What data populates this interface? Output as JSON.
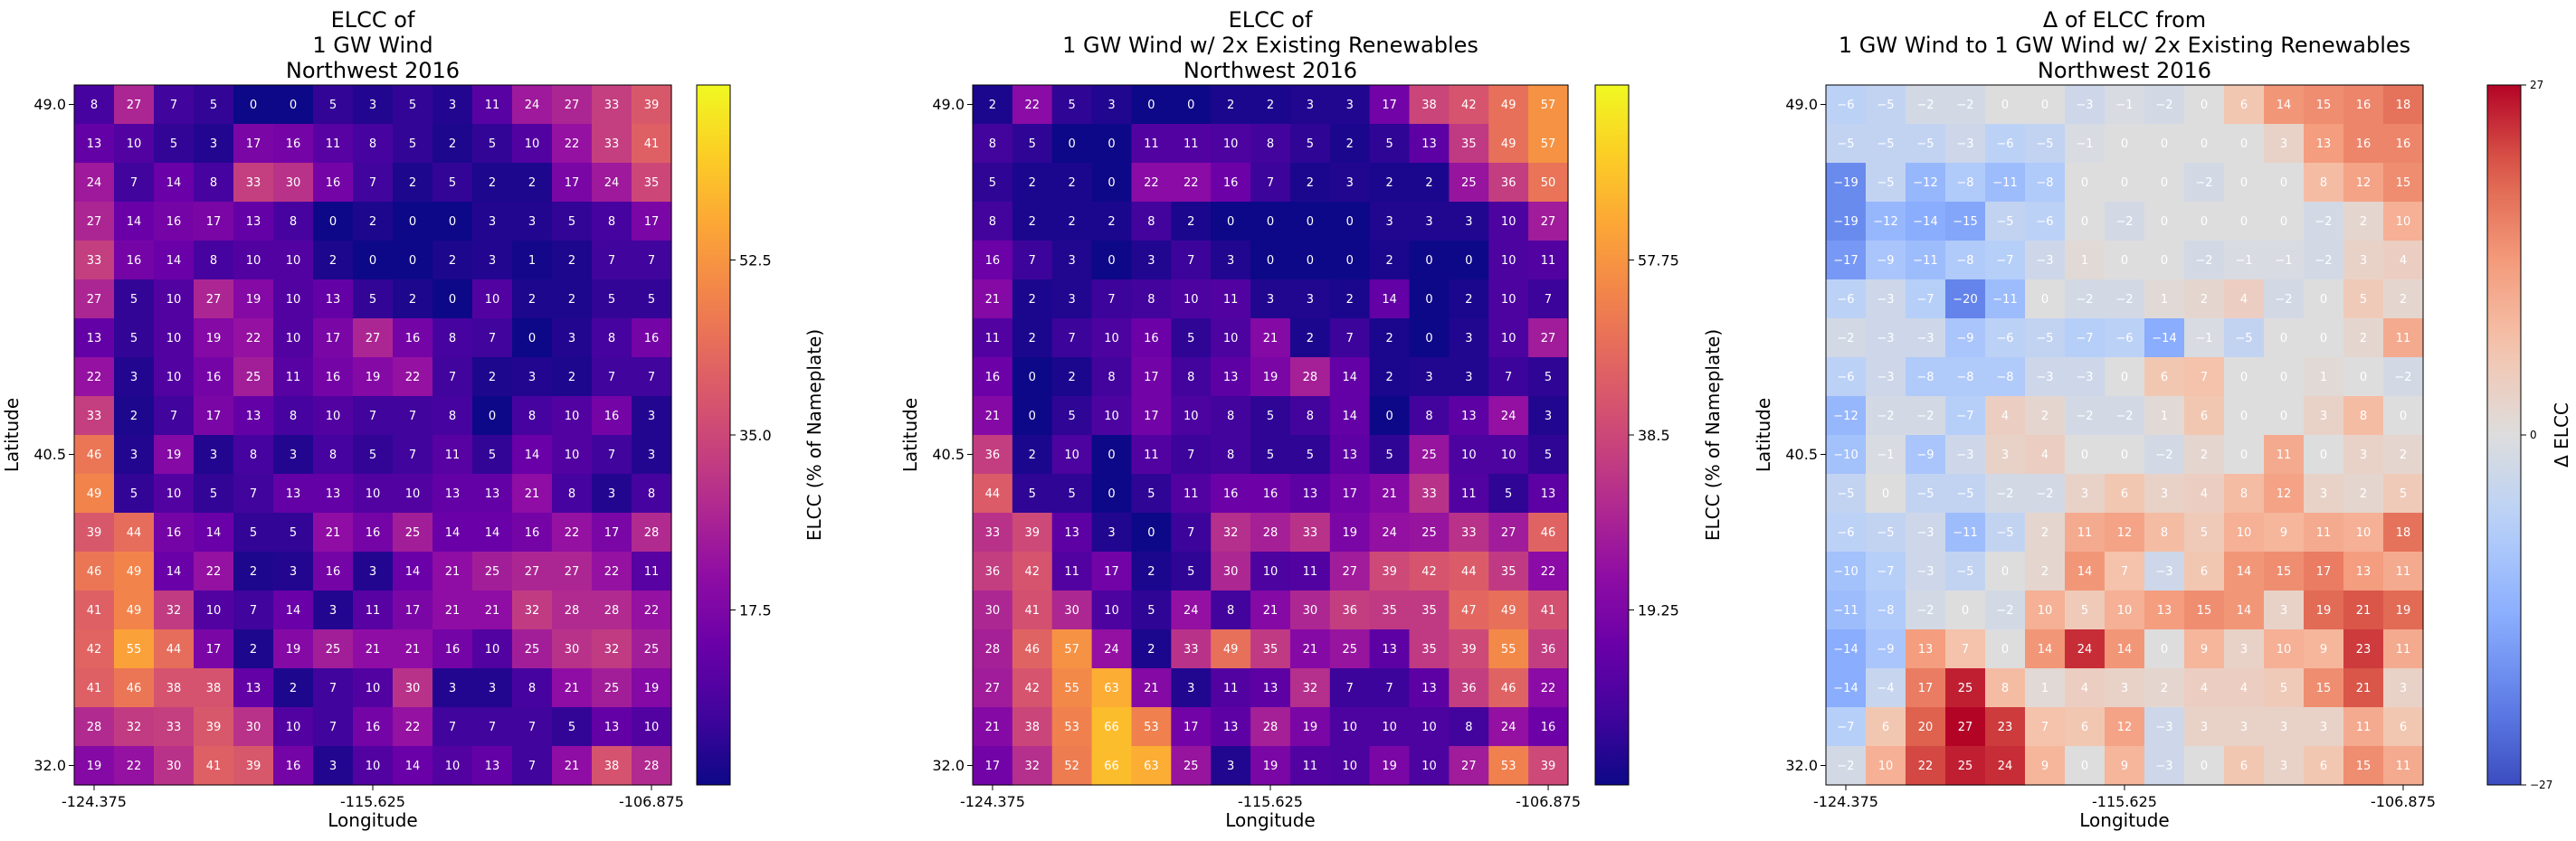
{
  "chart_data": [
    {
      "type": "heatmap",
      "title": "ELCC of\n1 GW Wind\nNorthwest 2016",
      "xlabel": "Longitude",
      "ylabel": "Latitude",
      "xticks": [
        "-124.375",
        "-115.625",
        "-106.875"
      ],
      "yticks": [
        "49.0",
        "40.5",
        "32.0"
      ],
      "colormap": "plasma",
      "vmin": 0,
      "vmax": 70,
      "colorbar_label": "ELCC (% of Nameplate)",
      "colorbar_ticks": [
        "17.5",
        "35.0",
        "52.5"
      ],
      "colorbar_tick_values": [
        17.5,
        35.0,
        52.5
      ],
      "grid": [
        [
          8,
          27,
          7,
          5,
          0,
          0,
          5,
          3,
          5,
          3,
          11,
          24,
          27,
          33,
          39
        ],
        [
          13,
          10,
          5,
          3,
          17,
          16,
          11,
          8,
          5,
          2,
          5,
          10,
          22,
          33,
          41
        ],
        [
          24,
          7,
          14,
          8,
          33,
          30,
          16,
          7,
          2,
          5,
          2,
          2,
          17,
          24,
          35
        ],
        [
          27,
          14,
          16,
          17,
          13,
          8,
          0,
          2,
          0,
          0,
          3,
          3,
          5,
          8,
          17
        ],
        [
          33,
          16,
          14,
          8,
          10,
          10,
          2,
          0,
          0,
          2,
          3,
          1,
          2,
          7,
          7
        ],
        [
          27,
          5,
          10,
          27,
          19,
          10,
          13,
          5,
          2,
          0,
          10,
          2,
          2,
          5,
          5
        ],
        [
          13,
          5,
          10,
          19,
          22,
          10,
          17,
          27,
          16,
          8,
          7,
          0,
          3,
          8,
          16
        ],
        [
          22,
          3,
          10,
          16,
          25,
          11,
          16,
          19,
          22,
          7,
          2,
          3,
          2,
          7,
          7
        ],
        [
          33,
          2,
          7,
          17,
          13,
          8,
          10,
          7,
          7,
          8,
          0,
          8,
          10,
          16,
          3
        ],
        [
          46,
          3,
          19,
          3,
          8,
          3,
          8,
          5,
          7,
          11,
          5,
          14,
          10,
          7,
          3
        ],
        [
          49,
          5,
          10,
          5,
          7,
          13,
          13,
          10,
          10,
          13,
          13,
          21,
          8,
          3,
          8
        ],
        [
          39,
          44,
          16,
          14,
          5,
          5,
          21,
          16,
          25,
          14,
          14,
          16,
          22,
          17,
          28
        ],
        [
          46,
          49,
          14,
          22,
          2,
          3,
          16,
          3,
          14,
          21,
          25,
          27,
          27,
          22,
          11
        ],
        [
          41,
          49,
          32,
          10,
          7,
          14,
          3,
          11,
          17,
          21,
          21,
          32,
          28,
          28,
          22
        ],
        [
          42,
          55,
          44,
          17,
          2,
          19,
          25,
          21,
          21,
          16,
          10,
          25,
          30,
          32,
          25
        ],
        [
          41,
          46,
          38,
          38,
          13,
          2,
          7,
          10,
          30,
          3,
          3,
          8,
          21,
          25,
          19
        ],
        [
          28,
          32,
          33,
          39,
          30,
          10,
          7,
          16,
          22,
          7,
          7,
          7,
          5,
          13,
          10
        ],
        [
          19,
          22,
          30,
          41,
          39,
          16,
          3,
          10,
          14,
          10,
          13,
          7,
          21,
          38,
          28
        ]
      ]
    },
    {
      "type": "heatmap",
      "title": "ELCC of\n1 GW Wind w/ 2x Existing Renewables\nNorthwest 2016",
      "xlabel": "Longitude",
      "ylabel": "Latitude",
      "xticks": [
        "-124.375",
        "-115.625",
        "-106.875"
      ],
      "yticks": [
        "49.0",
        "40.5",
        "32.0"
      ],
      "colormap": "plasma",
      "vmin": 0,
      "vmax": 77,
      "colorbar_label": "ELCC (% of Nameplate)",
      "colorbar_ticks": [
        "19.25",
        "38.5",
        "57.75"
      ],
      "colorbar_tick_values": [
        19.25,
        38.5,
        57.75
      ],
      "grid": [
        [
          2,
          22,
          5,
          3,
          0,
          0,
          2,
          2,
          3,
          3,
          17,
          38,
          42,
          49,
          57
        ],
        [
          8,
          5,
          0,
          0,
          11,
          11,
          10,
          8,
          5,
          2,
          5,
          13,
          35,
          49,
          57
        ],
        [
          5,
          2,
          2,
          0,
          22,
          22,
          16,
          7,
          2,
          3,
          2,
          2,
          25,
          36,
          50
        ],
        [
          8,
          2,
          2,
          2,
          8,
          2,
          0,
          0,
          0,
          0,
          3,
          3,
          3,
          10,
          27
        ],
        [
          16,
          7,
          3,
          0,
          3,
          7,
          3,
          0,
          0,
          0,
          2,
          0,
          0,
          10,
          11
        ],
        [
          21,
          2,
          3,
          7,
          8,
          10,
          11,
          3,
          3,
          2,
          14,
          0,
          2,
          10,
          7
        ],
        [
          11,
          2,
          7,
          10,
          16,
          5,
          10,
          21,
          2,
          7,
          2,
          0,
          3,
          10,
          27
        ],
        [
          16,
          0,
          2,
          8,
          17,
          8,
          13,
          19,
          28,
          14,
          2,
          3,
          3,
          7,
          5
        ],
        [
          21,
          0,
          5,
          10,
          17,
          10,
          8,
          5,
          8,
          14,
          0,
          8,
          13,
          24,
          3
        ],
        [
          36,
          2,
          10,
          0,
          11,
          7,
          8,
          5,
          5,
          13,
          5,
          25,
          10,
          10,
          5
        ],
        [
          44,
          5,
          5,
          0,
          5,
          11,
          16,
          16,
          13,
          17,
          21,
          33,
          11,
          5,
          13
        ],
        [
          33,
          39,
          13,
          3,
          0,
          7,
          32,
          28,
          33,
          19,
          24,
          25,
          33,
          27,
          46
        ],
        [
          36,
          42,
          11,
          17,
          2,
          5,
          30,
          10,
          11,
          27,
          39,
          42,
          44,
          35,
          22
        ],
        [
          30,
          41,
          30,
          10,
          5,
          24,
          8,
          21,
          30,
          36,
          35,
          35,
          47,
          49,
          41
        ],
        [
          28,
          46,
          57,
          24,
          2,
          33,
          49,
          35,
          21,
          25,
          13,
          35,
          39,
          55,
          36
        ],
        [
          27,
          42,
          55,
          63,
          21,
          3,
          11,
          13,
          32,
          7,
          7,
          13,
          36,
          46,
          22
        ],
        [
          21,
          38,
          53,
          66,
          53,
          17,
          13,
          28,
          19,
          10,
          10,
          10,
          8,
          24,
          16
        ],
        [
          17,
          32,
          52,
          66,
          63,
          25,
          3,
          19,
          11,
          10,
          19,
          10,
          27,
          53,
          39
        ]
      ]
    },
    {
      "type": "heatmap",
      "title": "Δ of ELCC from\n1 GW Wind to 1 GW Wind w/ 2x Existing Renewables\nNorthwest 2016",
      "xlabel": "Longitude",
      "ylabel": "Latitude",
      "xticks": [
        "-124.375",
        "-115.625",
        "-106.875"
      ],
      "yticks": [
        "49.0",
        "40.5",
        "32.0"
      ],
      "colormap": "coolwarm",
      "vmin": -27,
      "vmax": 27,
      "colorbar_label": "Δ ELCC",
      "colorbar_ticks": [
        "27",
        "0",
        "−27"
      ],
      "colorbar_tick_values": [
        27,
        0,
        -27
      ],
      "grid": [
        [
          -6,
          -5,
          -2,
          -2,
          0,
          0,
          -3,
          -1,
          -2,
          0,
          6,
          14,
          15,
          16,
          18
        ],
        [
          -5,
          -5,
          -5,
          -3,
          -6,
          -5,
          -1,
          0,
          0,
          0,
          0,
          3,
          13,
          16,
          16
        ],
        [
          -19,
          -5,
          -12,
          -8,
          -11,
          -8,
          0,
          0,
          0,
          -2,
          0,
          0,
          8,
          12,
          15
        ],
        [
          -19,
          -12,
          -14,
          -15,
          -5,
          -6,
          0,
          -2,
          0,
          0,
          0,
          0,
          -2,
          2,
          10
        ],
        [
          -17,
          -9,
          -11,
          -8,
          -7,
          -3,
          1,
          0,
          0,
          -2,
          -1,
          -1,
          -2,
          3,
          4
        ],
        [
          -6,
          -3,
          -7,
          -20,
          -11,
          0,
          -2,
          -2,
          1,
          2,
          4,
          -2,
          0,
          5,
          2
        ],
        [
          -2,
          -3,
          -3,
          -9,
          -6,
          -5,
          -7,
          -6,
          -14,
          -1,
          -5,
          0,
          0,
          2,
          11
        ],
        [
          -6,
          -3,
          -8,
          -8,
          -8,
          -3,
          -3,
          0,
          6,
          7,
          0,
          0,
          1,
          0,
          -2
        ],
        [
          -12,
          -2,
          -2,
          -7,
          4,
          2,
          -2,
          -2,
          1,
          6,
          0,
          0,
          3,
          8,
          0
        ],
        [
          -10,
          -1,
          -9,
          -3,
          3,
          4,
          0,
          0,
          -2,
          2,
          0,
          11,
          0,
          3,
          2
        ],
        [
          -5,
          0,
          -5,
          -5,
          -2,
          -2,
          3,
          6,
          3,
          4,
          8,
          12,
          3,
          2,
          5
        ],
        [
          -6,
          -5,
          -3,
          -11,
          -5,
          2,
          11,
          12,
          8,
          5,
          10,
          9,
          11,
          10,
          18
        ],
        [
          -10,
          -7,
          -3,
          -5,
          0,
          2,
          14,
          7,
          -3,
          6,
          14,
          15,
          17,
          13,
          11
        ],
        [
          -11,
          -8,
          -2,
          0,
          -2,
          10,
          5,
          10,
          13,
          15,
          14,
          3,
          19,
          21,
          19
        ],
        [
          -14,
          -9,
          13,
          7,
          0,
          14,
          24,
          14,
          0,
          9,
          3,
          10,
          9,
          23,
          11
        ],
        [
          -14,
          -4,
          17,
          25,
          8,
          1,
          4,
          3,
          2,
          4,
          4,
          5,
          15,
          21,
          3
        ],
        [
          -7,
          6,
          20,
          27,
          23,
          7,
          6,
          12,
          -3,
          3,
          3,
          3,
          3,
          11,
          6
        ],
        [
          -2,
          10,
          22,
          25,
          24,
          9,
          0,
          9,
          -3,
          0,
          6,
          3,
          6,
          15,
          11
        ]
      ]
    }
  ]
}
